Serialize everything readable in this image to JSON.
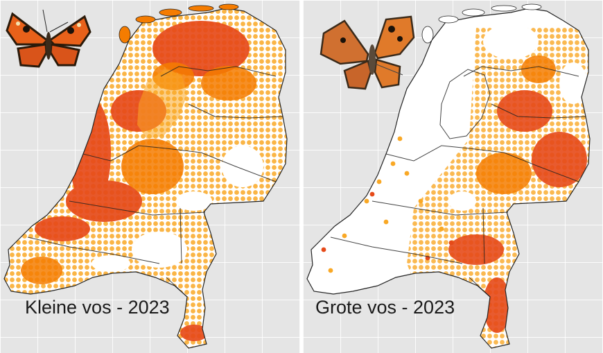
{
  "maps": [
    {
      "title": "Kleine vos - 2023",
      "butterfly_icon": "small-tortoiseshell-butterfly-icon",
      "colors": {
        "land": "#ffffff",
        "outline": "#222222",
        "high": "#e64a19",
        "mid": "#f57c00",
        "low": "#f9a825"
      },
      "sea_color": "#e5e5e5"
    },
    {
      "title": "Grote vos - 2023",
      "butterfly_icon": "large-tortoiseshell-butterfly-icon",
      "colors": {
        "land": "#ffffff",
        "outline": "#222222",
        "high": "#e64a19",
        "mid": "#f57c00",
        "low": "#f9a825"
      },
      "sea_color": "#e5e5e5"
    }
  ]
}
